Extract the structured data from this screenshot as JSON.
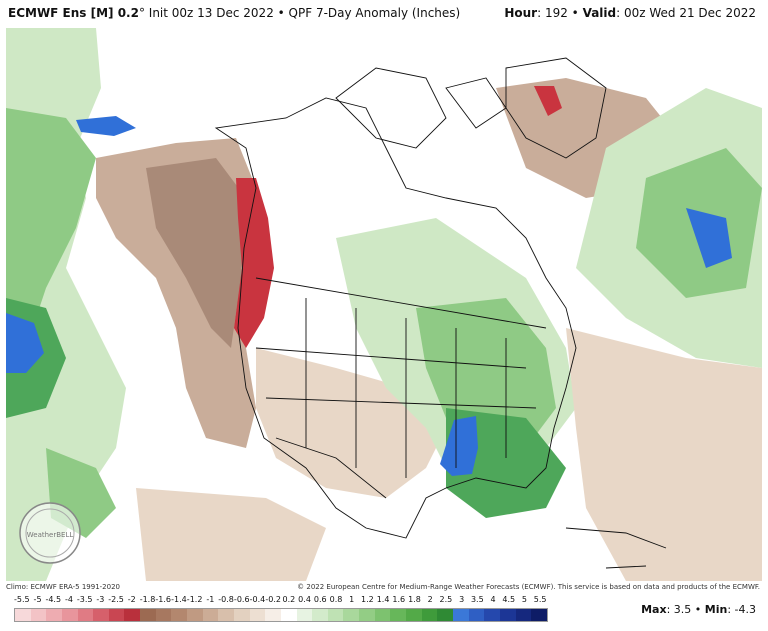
{
  "header": {
    "model": "ECMWF Ens [M] 0.2",
    "degree": "°",
    "init": " Init 00z 13 Dec 2022",
    "sep": " • ",
    "product": "QPF 7-Day Anomaly (Inches)",
    "hour_label": "Hour",
    "hour_value": ": 192",
    "sep2": " • ",
    "valid_label": "Valid",
    "valid_value": ": 00z Wed 21 Dec 2022"
  },
  "footer": {
    "climo": "Climo: ECMWF ERA-5 1991-2020",
    "copyright": "© 2022 European Centre for Medium-Range Weather Forecasts (ECMWF). This service is based on data and products of the ECMWF."
  },
  "legend": {
    "labels": [
      "-5.5",
      "-5",
      "-4.5",
      "-4",
      "-3.5",
      "-3",
      "-2.5",
      "-2",
      "-1.8",
      "-1.6",
      "-1.4",
      "-1.2",
      "-1",
      "-0.8",
      "-0.6",
      "-0.4",
      "-0.2",
      "0.2",
      "0.4",
      "0.6",
      "0.8",
      "1",
      "1.2",
      "1.4",
      "1.6",
      "1.8",
      "2",
      "2.5",
      "3",
      "3.5",
      "4",
      "4.5",
      "5",
      "5.5"
    ],
    "colors": [
      "#f7d9da",
      "#f3c3c6",
      "#eeacb1",
      "#e8959c",
      "#e07b84",
      "#d6606b",
      "#c94652",
      "#b9303c",
      "#9c6a52",
      "#a77860",
      "#b3876e",
      "#c09a82",
      "#ccac96",
      "#d8bfab",
      "#e3d1c0",
      "#eddfd2",
      "#f6eee7",
      "#ffffff",
      "#e7f3e2",
      "#d3ebcb",
      "#bfe2b4",
      "#a9d89c",
      "#93cd85",
      "#7dc26f",
      "#67b75a",
      "#53aa48",
      "#3f9b3b",
      "#2f8a34",
      "#3b78d8",
      "#2f5fc4",
      "#2548ad",
      "#1c3696",
      "#15287e",
      "#0e1c66"
    ]
  },
  "maxmin": {
    "max_label": "Max",
    "max_value": ": 3.5",
    "sep": " • ",
    "min_label": "Min",
    "min_value": ": -4.3"
  },
  "logo": {
    "text": "WeatherBELL",
    "icon": "weatherbell-logo"
  },
  "map": {
    "colors": {
      "red": "#c9343f",
      "brown_dark": "#a98a78",
      "brown": "#c9ad9a",
      "tan": "#e8d7c7",
      "green_light": "#cfe8c5",
      "green": "#8fca85",
      "green_dark": "#4ea75a",
      "blue": "#3070d8",
      "border": "#111111"
    }
  }
}
